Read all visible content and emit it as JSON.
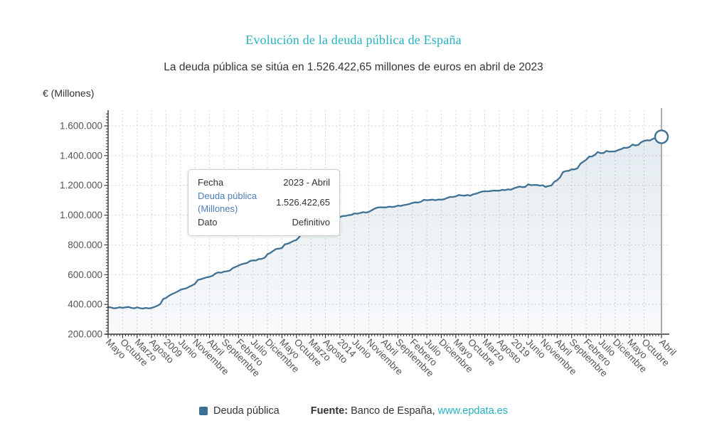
{
  "title": {
    "text": "Evolución de la deuda pública de España",
    "color": "#25b2c3"
  },
  "subtitle": {
    "text": "La deuda pública se sitúa en 1.526.422,65 millones de euros en abril de 2023"
  },
  "tooltip": {
    "fecha_label": "Fecha",
    "fecha_value": "2023 - Abril",
    "series_label_line1": "Deuda pública",
    "series_label_line2": "(Millones)",
    "series_value": "1.526.422,65",
    "dato_label": "Dato",
    "dato_value": "Definitivo",
    "series_label_color": "#4a7eb5"
  },
  "legend": {
    "label": "Deuda pública",
    "marker_color": "#3d7095"
  },
  "source": {
    "prefix": "Fuente:",
    "text": " Banco de España, ",
    "link": "www.epdata.es",
    "link_color": "#25b2c3"
  },
  "chart_data": {
    "type": "area",
    "series_name": "Deuda pública",
    "title": "Evolución de la deuda pública de España",
    "ylabel": "€ (Millones)",
    "x_unit": "month",
    "start_month": "2007-05",
    "end_month": "2023-04",
    "ylim": [
      200000,
      1700000
    ],
    "grid": true,
    "line_color": "#3e7194",
    "fill_color_top": "rgba(62,113,148,0.14)",
    "fill_color_bottom": "rgba(62,113,148,0.04)",
    "grid_color": "#d6d6d6",
    "axis_color": "#333333",
    "crosshair_color": "#999999",
    "tick_label_color": "#555555",
    "yticks": [
      {
        "v": 200000,
        "label": "200.000"
      },
      {
        "v": 400000,
        "label": "400.000"
      },
      {
        "v": 600000,
        "label": "600.000"
      },
      {
        "v": 800000,
        "label": "800.000"
      },
      {
        "v": 1000000,
        "label": "1.000.000"
      },
      {
        "v": 1200000,
        "label": "1.200.000"
      },
      {
        "v": 1400000,
        "label": "1.400.000"
      },
      {
        "v": 1600000,
        "label": "1.600.000"
      }
    ],
    "xticks": [
      {
        "i": 0,
        "label": "Mayo"
      },
      {
        "i": 5,
        "label": "Octubre"
      },
      {
        "i": 10,
        "label": "Marzo"
      },
      {
        "i": 15,
        "label": "Agosto"
      },
      {
        "i": 20,
        "label": "2009"
      },
      {
        "i": 25,
        "label": "Junio"
      },
      {
        "i": 30,
        "label": "Noviembre"
      },
      {
        "i": 35,
        "label": "Abril"
      },
      {
        "i": 40,
        "label": "Septiembre"
      },
      {
        "i": 45,
        "label": "Febrero"
      },
      {
        "i": 50,
        "label": "Julio"
      },
      {
        "i": 55,
        "label": "Diciembre"
      },
      {
        "i": 60,
        "label": "Mayo"
      },
      {
        "i": 65,
        "label": "Octubre"
      },
      {
        "i": 70,
        "label": "Marzo"
      },
      {
        "i": 75,
        "label": "Agosto"
      },
      {
        "i": 80,
        "label": "2014"
      },
      {
        "i": 85,
        "label": "Junio"
      },
      {
        "i": 90,
        "label": "Noviembre"
      },
      {
        "i": 95,
        "label": "Abril"
      },
      {
        "i": 100,
        "label": "Septiembre"
      },
      {
        "i": 105,
        "label": "Febrero"
      },
      {
        "i": 110,
        "label": "Julio"
      },
      {
        "i": 115,
        "label": "Diciembre"
      },
      {
        "i": 120,
        "label": "Mayo"
      },
      {
        "i": 125,
        "label": "Octubre"
      },
      {
        "i": 130,
        "label": "Marzo"
      },
      {
        "i": 135,
        "label": "Agosto"
      },
      {
        "i": 140,
        "label": "2019"
      },
      {
        "i": 145,
        "label": "Junio"
      },
      {
        "i": 150,
        "label": "Noviembre"
      },
      {
        "i": 155,
        "label": "Abril"
      },
      {
        "i": 160,
        "label": "Septiembre"
      },
      {
        "i": 165,
        "label": "Febrero"
      },
      {
        "i": 170,
        "label": "Julio"
      },
      {
        "i": 175,
        "label": "Diciembre"
      },
      {
        "i": 180,
        "label": "Mayo"
      },
      {
        "i": 185,
        "label": "Octubre"
      },
      {
        "i": 191,
        "label": "Abril"
      }
    ],
    "values": [
      383000,
      379000,
      374000,
      376000,
      381000,
      377000,
      380000,
      383000,
      377000,
      374000,
      380000,
      375000,
      372000,
      377000,
      373000,
      376000,
      383000,
      391000,
      402000,
      436000,
      444000,
      458000,
      469000,
      477000,
      487000,
      498000,
      504000,
      508000,
      519000,
      528000,
      539000,
      565000,
      569000,
      576000,
      582000,
      586000,
      592000,
      607000,
      615000,
      613000,
      620000,
      623000,
      627000,
      644000,
      652000,
      661000,
      669000,
      674000,
      679000,
      692000,
      696000,
      695000,
      705000,
      706000,
      713000,
      737000,
      746000,
      760000,
      773000,
      775000,
      779000,
      804000,
      808000,
      817000,
      827000,
      833000,
      853000,
      884000,
      893000,
      910000,
      922000,
      928000,
      935000,
      943000,
      944000,
      946000,
      954000,
      956000,
      963000,
      966000,
      987000,
      994000,
      995000,
      1000000,
      1002000,
      1012000,
      1010000,
      1014000,
      1020000,
      1017000,
      1022000,
      1033000,
      1044000,
      1051000,
      1053000,
      1052000,
      1052000,
      1057000,
      1055000,
      1057000,
      1064000,
      1062000,
      1067000,
      1070000,
      1075000,
      1082000,
      1086000,
      1085000,
      1090000,
      1103000,
      1100000,
      1102000,
      1104000,
      1100000,
      1105000,
      1104000,
      1107000,
      1115000,
      1122000,
      1122000,
      1126000,
      1135000,
      1132000,
      1131000,
      1135000,
      1131000,
      1140000,
      1144000,
      1152000,
      1158000,
      1161000,
      1160000,
      1162000,
      1165000,
      1164000,
      1164000,
      1170000,
      1168000,
      1173000,
      1171000,
      1180000,
      1186000,
      1192000,
      1188000,
      1190000,
      1207000,
      1201000,
      1203000,
      1203000,
      1198000,
      1201000,
      1189000,
      1196000,
      1199000,
      1224000,
      1235000,
      1254000,
      1289000,
      1296000,
      1298000,
      1308000,
      1307000,
      1315000,
      1345000,
      1359000,
      1372000,
      1393000,
      1394000,
      1405000,
      1424000,
      1417000,
      1417000,
      1432000,
      1427000,
      1428000,
      1428000,
      1437000,
      1443000,
      1453000,
      1452000,
      1458000,
      1475000,
      1468000,
      1472000,
      1490000,
      1499000,
      1503000,
      1502000,
      1512000,
      1521000,
      1509000,
      1526422.65
    ],
    "last_point": {
      "x": "2023-04",
      "y": 1526422.65,
      "marker": "open-circle"
    },
    "legend_position": "bottom"
  }
}
